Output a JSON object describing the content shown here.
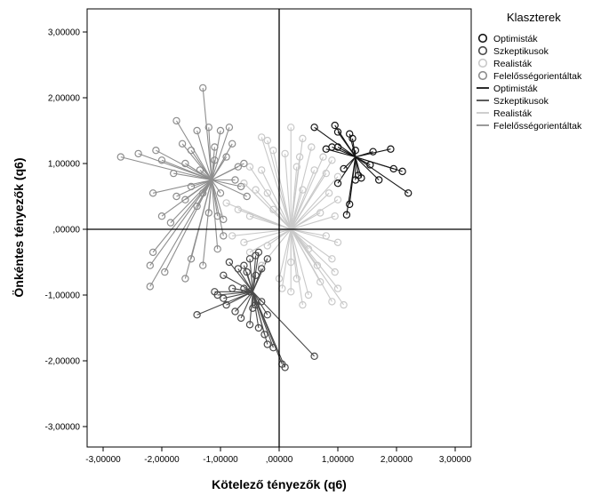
{
  "chart_data": {
    "type": "scatter",
    "title": "",
    "xlabel": "Kötelező tényezők (q6)",
    "ylabel": "Önkéntes tényezők (q6)",
    "xlim": [
      -3.3,
      3.3
    ],
    "ylim": [
      -3.3,
      3.3
    ],
    "x_ticks": [
      "-3,00000",
      "-2,00000",
      "-1,00000",
      ",00000",
      "1,00000",
      "2,00000",
      "3,00000"
    ],
    "y_ticks": [
      "3,00000",
      "2,00000",
      "1,00000",
      ",00000",
      "-1,00000",
      "-2,00000",
      "-3,00000"
    ],
    "x_tick_values": [
      -3,
      -2,
      -1,
      0,
      1,
      2,
      3
    ],
    "y_tick_values": [
      3,
      2,
      1,
      0,
      -1,
      -2,
      -3
    ],
    "reference_lines": {
      "x": 0,
      "y": 0
    },
    "legend": {
      "title": "Klaszterek",
      "position": "top-right",
      "marker_entries": [
        "Optimisták",
        "Szkeptikusok",
        "Realisták",
        "Felelősségorientáltak"
      ],
      "line_entries": [
        "Optimisták",
        "Szkeptikusok",
        "Realisták",
        "Felelősségorientáltak"
      ]
    },
    "series": [
      {
        "name": "Optimisták",
        "color": "#141414",
        "centroid": [
          1.3,
          1.1
        ],
        "points": [
          [
            0.6,
            1.55
          ],
          [
            0.95,
            1.58
          ],
          [
            1.0,
            1.48
          ],
          [
            1.2,
            1.45
          ],
          [
            1.25,
            1.38
          ],
          [
            0.8,
            1.22
          ],
          [
            0.9,
            1.25
          ],
          [
            1.0,
            1.25
          ],
          [
            1.3,
            1.2
          ],
          [
            1.6,
            1.18
          ],
          [
            1.9,
            1.22
          ],
          [
            1.95,
            0.92
          ],
          [
            2.1,
            0.88
          ],
          [
            2.2,
            0.55
          ],
          [
            1.7,
            0.75
          ],
          [
            1.4,
            0.78
          ],
          [
            1.35,
            0.82
          ],
          [
            1.3,
            0.75
          ],
          [
            1.1,
            0.92
          ],
          [
            1.0,
            0.7
          ],
          [
            1.2,
            0.38
          ],
          [
            1.15,
            0.22
          ],
          [
            1.55,
            0.98
          ]
        ]
      },
      {
        "name": "Szkeptikusok",
        "color": "#4a4a4a",
        "centroid": [
          -0.45,
          -0.95
        ],
        "points": [
          [
            -0.85,
            -0.5
          ],
          [
            -0.6,
            -0.55
          ],
          [
            -0.4,
            -0.4
          ],
          [
            -0.35,
            -0.35
          ],
          [
            -0.5,
            -0.45
          ],
          [
            -0.2,
            -0.45
          ],
          [
            -0.3,
            -0.6
          ],
          [
            -0.7,
            -0.6
          ],
          [
            -0.55,
            -0.65
          ],
          [
            -0.4,
            -0.7
          ],
          [
            -0.95,
            -0.7
          ],
          [
            -1.1,
            -0.95
          ],
          [
            -1.05,
            -1.0
          ],
          [
            -0.95,
            -1.05
          ],
          [
            -0.8,
            -0.9
          ],
          [
            -0.6,
            -0.9
          ],
          [
            -0.5,
            -0.95
          ],
          [
            -0.9,
            -1.15
          ],
          [
            -0.75,
            -1.25
          ],
          [
            -0.65,
            -1.35
          ],
          [
            -0.5,
            -1.45
          ],
          [
            -0.45,
            -1.2
          ],
          [
            -0.4,
            -1.15
          ],
          [
            -0.3,
            -1.1
          ],
          [
            -0.2,
            -1.3
          ],
          [
            -0.25,
            -1.6
          ],
          [
            -0.2,
            -1.75
          ],
          [
            -0.1,
            -1.8
          ],
          [
            0.05,
            -2.05
          ],
          [
            0.1,
            -2.1
          ],
          [
            0.6,
            -1.93
          ],
          [
            -1.4,
            -1.3
          ],
          [
            -0.35,
            -1.5
          ]
        ]
      },
      {
        "name": "Realisták",
        "color": "#c9c9c9",
        "centroid": [
          0.2,
          0.0
        ],
        "points": [
          [
            -0.3,
            1.4
          ],
          [
            -0.2,
            1.35
          ],
          [
            0.2,
            1.55
          ],
          [
            0.4,
            1.38
          ],
          [
            -0.1,
            1.2
          ],
          [
            0.1,
            1.15
          ],
          [
            0.35,
            1.1
          ],
          [
            0.55,
            1.25
          ],
          [
            0.75,
            1.1
          ],
          [
            0.9,
            1.05
          ],
          [
            -0.5,
            0.95
          ],
          [
            -0.3,
            0.9
          ],
          [
            0.3,
            0.95
          ],
          [
            0.6,
            0.9
          ],
          [
            0.8,
            0.85
          ],
          [
            1.0,
            0.8
          ],
          [
            -0.6,
            0.7
          ],
          [
            -0.4,
            0.6
          ],
          [
            -0.2,
            0.55
          ],
          [
            0.4,
            0.6
          ],
          [
            0.85,
            0.55
          ],
          [
            1.0,
            0.45
          ],
          [
            -0.9,
            0.4
          ],
          [
            -0.7,
            0.3
          ],
          [
            -0.5,
            0.2
          ],
          [
            0.7,
            0.25
          ],
          [
            0.95,
            0.2
          ],
          [
            -0.8,
            -0.1
          ],
          [
            -0.6,
            -0.2
          ],
          [
            0.8,
            -0.1
          ],
          [
            1.0,
            -0.2
          ],
          [
            -0.5,
            -0.35
          ],
          [
            -0.2,
            -0.25
          ],
          [
            0.5,
            -0.3
          ],
          [
            0.9,
            -0.45
          ],
          [
            -0.3,
            -0.55
          ],
          [
            0.2,
            -0.5
          ],
          [
            0.65,
            -0.55
          ],
          [
            0.95,
            -0.65
          ],
          [
            0.0,
            -0.75
          ],
          [
            0.3,
            -0.75
          ],
          [
            0.7,
            -0.8
          ],
          [
            1.0,
            -0.9
          ],
          [
            0.2,
            -0.95
          ],
          [
            0.5,
            -1.0
          ],
          [
            0.9,
            -1.1
          ],
          [
            1.1,
            -1.15
          ],
          [
            0.4,
            -1.15
          ],
          [
            0.05,
            -0.9
          ],
          [
            -0.1,
            0.3
          ]
        ]
      },
      {
        "name": "Felelősségorientáltak",
        "color": "#8e8e8e",
        "centroid": [
          -1.15,
          0.75
        ],
        "points": [
          [
            -1.3,
            2.15
          ],
          [
            -1.75,
            1.65
          ],
          [
            -1.4,
            1.5
          ],
          [
            -1.2,
            1.55
          ],
          [
            -1.0,
            1.5
          ],
          [
            -0.85,
            1.55
          ],
          [
            -1.65,
            1.3
          ],
          [
            -1.5,
            1.2
          ],
          [
            -1.1,
            1.25
          ],
          [
            -0.8,
            1.3
          ],
          [
            -2.1,
            1.2
          ],
          [
            -2.0,
            1.05
          ],
          [
            -2.4,
            1.15
          ],
          [
            -2.7,
            1.1
          ],
          [
            -1.6,
            1.0
          ],
          [
            -1.1,
            1.05
          ],
          [
            -0.9,
            1.1
          ],
          [
            -0.7,
            0.95
          ],
          [
            -0.6,
            1.0
          ],
          [
            -0.75,
            0.75
          ],
          [
            -0.65,
            0.65
          ],
          [
            -1.8,
            0.85
          ],
          [
            -1.5,
            0.65
          ],
          [
            -2.15,
            0.55
          ],
          [
            -1.75,
            0.5
          ],
          [
            -1.6,
            0.45
          ],
          [
            -1.3,
            0.55
          ],
          [
            -1.0,
            0.55
          ],
          [
            -2.0,
            0.2
          ],
          [
            -1.85,
            0.1
          ],
          [
            -1.4,
            0.35
          ],
          [
            -1.2,
            0.25
          ],
          [
            -1.05,
            0.2
          ],
          [
            -0.95,
            0.15
          ],
          [
            -2.15,
            -0.35
          ],
          [
            -2.2,
            -0.55
          ],
          [
            -1.95,
            -0.65
          ],
          [
            -1.6,
            -0.75
          ],
          [
            -1.3,
            -0.55
          ],
          [
            -1.05,
            -0.3
          ],
          [
            -0.95,
            -0.1
          ],
          [
            -2.2,
            -0.87
          ],
          [
            -1.5,
            -0.45
          ],
          [
            -1.35,
            0.9
          ],
          [
            -0.55,
            0.5
          ]
        ]
      }
    ]
  }
}
